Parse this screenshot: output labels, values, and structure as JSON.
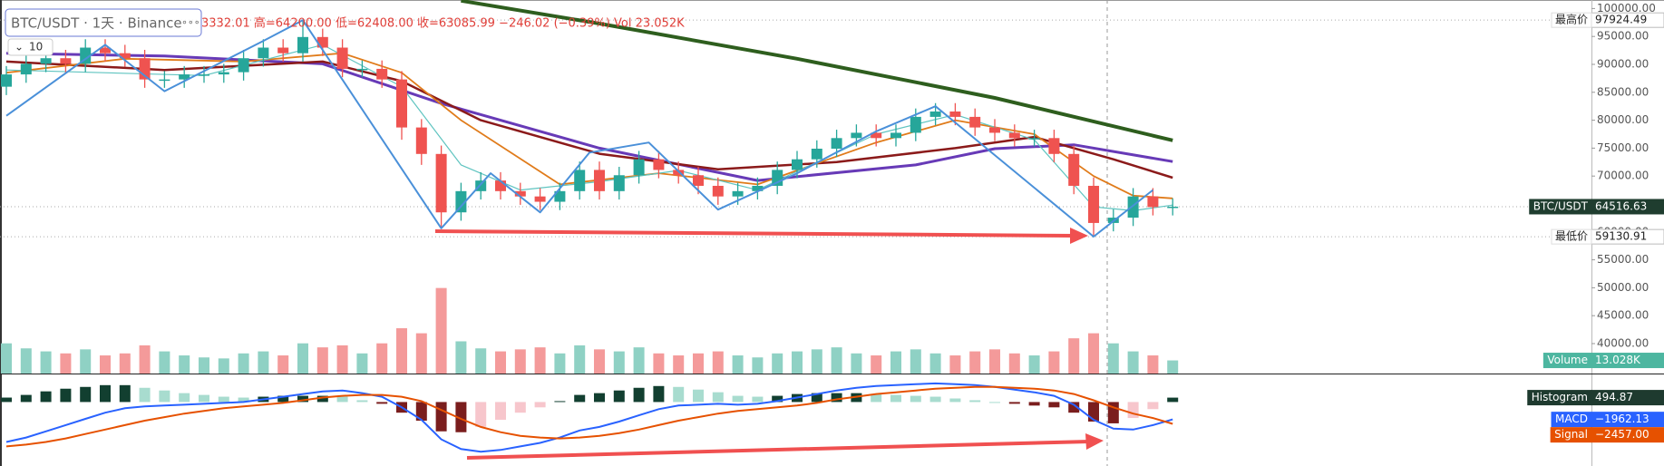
{
  "header": {
    "symbol": "BTC/USDT · 1天 · Binance",
    "ohlc": "3332.01  高=64200.00  低=62408.00  收=63085.99  −246.02 (−0.39%)  Vol 23.052K",
    "indicator_count": "10"
  },
  "chart_data": [
    {
      "type": "candlestick",
      "up_color": "#26a69a",
      "down_color": "#ef5350",
      "open": [
        86000,
        88200,
        90100,
        91100,
        90100,
        93000,
        92000,
        91100,
        87300,
        87300,
        88200,
        88200,
        88600,
        91100,
        93000,
        92000,
        94900,
        93000,
        89200,
        89200,
        87300,
        78700,
        73960,
        63500,
        67300,
        69200,
        67300,
        66350,
        65400,
        67300,
        71100,
        67300,
        70150,
        73000,
        71100,
        70150,
        68250,
        66350,
        67300,
        68250,
        71100,
        73000,
        74900,
        76800,
        77750,
        76800,
        77750,
        80600,
        81560,
        80600,
        78700,
        77750,
        76800,
        76800,
        73960,
        68250,
        61600,
        62550,
        66350,
        64450
      ],
      "high": [
        89700,
        91600,
        92600,
        92600,
        94500,
        94500,
        93500,
        92600,
        88800,
        89700,
        89700,
        90100,
        92600,
        94500,
        94500,
        97924.49,
        96400,
        94500,
        90700,
        90700,
        88800,
        80200,
        75460,
        68800,
        70700,
        70700,
        68800,
        67850,
        68800,
        72600,
        72600,
        71650,
        74500,
        74500,
        72600,
        71650,
        69750,
        68800,
        69750,
        72600,
        74500,
        76400,
        78300,
        79250,
        79250,
        79250,
        82100,
        83060,
        83060,
        82100,
        80200,
        79250,
        78300,
        78300,
        75460,
        69750,
        64050,
        67850,
        67850,
        66020
      ],
      "low": [
        84500,
        86700,
        88600,
        88600,
        88600,
        90500,
        89600,
        85800,
        85800,
        85800,
        86700,
        86700,
        87100,
        89600,
        90500,
        90500,
        91500,
        87700,
        87700,
        85800,
        76500,
        72000,
        60650,
        62000,
        65800,
        65800,
        64850,
        63900,
        63900,
        65800,
        65800,
        65800,
        68650,
        69600,
        68650,
        66750,
        64850,
        64850,
        65800,
        66750,
        69600,
        71500,
        73400,
        75300,
        75300,
        75300,
        76250,
        79100,
        79100,
        77200,
        76250,
        75300,
        75300,
        72460,
        66750,
        59130.91,
        60100,
        61050,
        62950,
        62950
      ],
      "close": [
        88200,
        90100,
        91100,
        90100,
        93000,
        92000,
        91100,
        87300,
        87300,
        88200,
        88200,
        88600,
        91100,
        93000,
        92000,
        94900,
        93000,
        89200,
        89200,
        87300,
        78700,
        73960,
        63500,
        67300,
        69200,
        67300,
        66350,
        65400,
        67300,
        71100,
        67300,
        70150,
        73000,
        71100,
        70150,
        68250,
        66350,
        67300,
        68250,
        71100,
        73000,
        74900,
        76800,
        77750,
        76800,
        77750,
        80600,
        81560,
        80600,
        78700,
        77750,
        76800,
        76800,
        73960,
        68250,
        61600,
        62550,
        66350,
        64450,
        64516.63
      ],
      "lines": [
        {
          "color": "#2e5e1e",
          "x": [
            23,
            30,
            40,
            50,
            59
          ],
          "values": [
            101400,
            97300,
            91000,
            84000,
            76400
          ]
        },
        {
          "color": "#673ab7",
          "x": [
            0,
            8,
            16,
            22,
            30,
            38,
            46,
            50,
            54,
            59
          ],
          "values": [
            92000,
            91500,
            90100,
            83000,
            75000,
            69200,
            72000,
            74900,
            75600,
            72600
          ]
        },
        {
          "color": "#8b1a1a",
          "x": [
            0,
            8,
            16,
            20,
            24,
            30,
            36,
            42,
            48,
            52,
            56,
            59
          ],
          "values": [
            90500,
            89000,
            90500,
            87000,
            80000,
            74000,
            71200,
            72500,
            75000,
            77000,
            73000,
            69700
          ]
        },
        {
          "color": "#e07b1a",
          "x": [
            0,
            6,
            12,
            17,
            20,
            23,
            28,
            33,
            38,
            44,
            48,
            52,
            55,
            57,
            59
          ],
          "values": [
            88500,
            91000,
            90500,
            92000,
            88500,
            80000,
            68500,
            70500,
            68500,
            76000,
            80000,
            77500,
            70000,
            66500,
            66000
          ]
        },
        {
          "color": "#5fc4c0",
          "x": [
            0,
            10,
            16,
            20,
            23,
            26,
            30,
            34,
            38,
            44,
            48,
            52,
            55,
            57,
            59
          ],
          "values": [
            89000,
            88000,
            93500,
            86000,
            72000,
            67500,
            69000,
            71000,
            67500,
            77500,
            81000,
            76500,
            64500,
            63800,
            64800
          ]
        }
      ],
      "zigzag": {
        "color": "#4a90d9",
        "x": [
          0,
          5,
          8,
          13,
          15,
          22,
          24.5,
          27,
          29.5,
          32.5,
          36,
          40,
          44,
          47,
          55,
          58
        ],
        "values": [
          80800,
          93500,
          85200,
          94200,
          97900,
          60650,
          70500,
          63500,
          74200,
          76000,
          64000,
          70500,
          78000,
          82500,
          59150,
          67500
        ]
      },
      "ylim": [
        34640,
        101526
      ],
      "yticks": [
        {
          "value": 40000,
          "label": "40000.00"
        },
        {
          "value": 45000,
          "label": "45000.00"
        },
        {
          "value": 50000,
          "label": "50000.00"
        },
        {
          "value": 55000,
          "label": "55000.00"
        },
        {
          "value": 60000,
          "label": "60000.00"
        },
        {
          "value": 65000,
          "label": "65000.00"
        },
        {
          "value": 70000,
          "label": "70000.00"
        },
        {
          "value": 75000,
          "label": "75000.00"
        },
        {
          "value": 80000,
          "label": "80000.00"
        },
        {
          "value": 85000,
          "label": "85000.00"
        },
        {
          "value": 90000,
          "label": "90000.00"
        },
        {
          "value": 95000,
          "label": "95000.00"
        },
        {
          "value": 100000,
          "label": "100000.00"
        }
      ],
      "markers": [
        {
          "label": "最高价",
          "value": 97924.49,
          "color": "#ffffff"
        },
        {
          "label": "BTC/USDT",
          "value": 64516.63,
          "color": "#1f3d2f"
        },
        {
          "label": "最低价",
          "value": 59130.91,
          "color": "#ffffff"
        }
      ]
    },
    {
      "type": "volume",
      "up_color": "#8fd1c4",
      "down_color": "#f49a9a",
      "ylim": [
        0,
        100
      ],
      "values": [
        30,
        25,
        22,
        20,
        24,
        18,
        20,
        28,
        22,
        18,
        16,
        15,
        20,
        22,
        18,
        30,
        26,
        28,
        20,
        30,
        45,
        40,
        85,
        32,
        25,
        22,
        24,
        26,
        20,
        28,
        24,
        22,
        26,
        20,
        18,
        20,
        22,
        18,
        16,
        20,
        22,
        24,
        26,
        20,
        18,
        22,
        24,
        20,
        18,
        22,
        24,
        20,
        18,
        22,
        35,
        40,
        30,
        22,
        18,
        13.028
      ],
      "tag": {
        "label": "Volume",
        "value": {
          "value": 13.028,
          "label": "13.028K"
        },
        "color": "#4db6a0"
      }
    },
    {
      "type": "macd",
      "ylim": [
        -7000,
        2800
      ],
      "histogram_colors": {
        "pos_rising": "#123f30",
        "pos_falling": "#a8dccf",
        "neg_falling": "#7a1d1d",
        "neg_rising": "#f7c6cc"
      },
      "histogram": [
        500,
        800,
        1200,
        1500,
        1700,
        1900,
        1900,
        1600,
        1300,
        1000,
        800,
        600,
        500,
        600,
        700,
        700,
        700,
        600,
        200,
        -200,
        -1200,
        -2100,
        -3300,
        -3400,
        -2800,
        -2000,
        -1200,
        -600,
        100,
        800,
        1000,
        1300,
        1600,
        1800,
        1700,
        1400,
        1100,
        700,
        600,
        700,
        900,
        1000,
        1000,
        1000,
        900,
        800,
        700,
        600,
        400,
        200,
        0,
        -200,
        -400,
        -600,
        -1200,
        -2200,
        -2400,
        -1800,
        -800,
        494.87
      ],
      "series": [
        {
          "name": "MACD",
          "color": "#2962ff",
          "values": [
            -4500,
            -4000,
            -3300,
            -2600,
            -1900,
            -1200,
            -700,
            -500,
            -400,
            -300,
            -200,
            -100,
            0,
            300,
            600,
            900,
            1200,
            1300,
            1000,
            600,
            -600,
            -2000,
            -4200,
            -5300,
            -5600,
            -5400,
            -5000,
            -4600,
            -4000,
            -3200,
            -2800,
            -2200,
            -1500,
            -800,
            -400,
            -300,
            -200,
            -300,
            -200,
            100,
            500,
            900,
            1300,
            1600,
            1800,
            1900,
            2000,
            2100,
            2000,
            1900,
            1700,
            1400,
            1100,
            700,
            -300,
            -2000,
            -3000,
            -3100,
            -2600,
            -1962.13
          ]
        },
        {
          "name": "Signal",
          "color": "#e65100",
          "values": [
            -5000,
            -4800,
            -4500,
            -4100,
            -3600,
            -3100,
            -2600,
            -2100,
            -1700,
            -1300,
            -1000,
            -700,
            -500,
            -300,
            -100,
            200,
            500,
            700,
            800,
            800,
            600,
            100,
            -900,
            -1900,
            -2800,
            -3400,
            -3800,
            -4000,
            -4100,
            -4000,
            -3800,
            -3500,
            -3100,
            -2600,
            -2100,
            -1700,
            -1300,
            -1000,
            -800,
            -600,
            -400,
            -100,
            300,
            600,
            900,
            1100,
            1300,
            1500,
            1600,
            1700,
            1700,
            1600,
            1500,
            1300,
            900,
            200,
            -600,
            -1300,
            -1800,
            -2457
          ]
        }
      ],
      "tags": [
        {
          "label": "Histogram",
          "value": 494.87,
          "color": "#1e3a2f"
        },
        {
          "label": "MACD",
          "value": {
            "value": -1962.13,
            "label": "−1962.13"
          },
          "color": "#2962ff"
        },
        {
          "label": "Signal",
          "value": {
            "value": -2457,
            "label": "−2457.00"
          },
          "color": "#e65100"
        }
      ]
    }
  ]
}
